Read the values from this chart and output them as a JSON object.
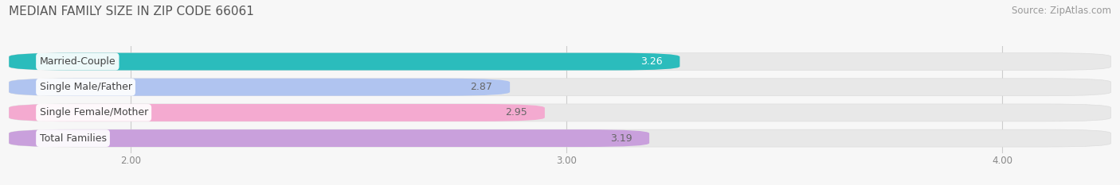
{
  "title": "MEDIAN FAMILY SIZE IN ZIP CODE 66061",
  "source": "Source: ZipAtlas.com",
  "categories": [
    "Married-Couple",
    "Single Male/Father",
    "Single Female/Mother",
    "Total Families"
  ],
  "values": [
    3.26,
    2.87,
    2.95,
    3.19
  ],
  "bar_colors": [
    "#2bbcbc",
    "#b0c4f0",
    "#f4aad0",
    "#c9a0dc"
  ],
  "value_text_colors": [
    "#ffffff",
    "#666666",
    "#666666",
    "#666666"
  ],
  "xlim_left": 1.72,
  "xlim_right": 4.25,
  "xticks": [
    2.0,
    3.0,
    4.0
  ],
  "xtick_labels": [
    "2.00",
    "3.00",
    "4.00"
  ],
  "title_fontsize": 11,
  "title_color": "#555555",
  "bar_height": 0.68,
  "value_fontsize": 9,
  "label_fontsize": 9,
  "source_fontsize": 8.5,
  "background_color": "#f7f7f7",
  "bar_bg_color": "#e8e8e8",
  "grid_color": "#cccccc",
  "label_text_color": "#444444"
}
